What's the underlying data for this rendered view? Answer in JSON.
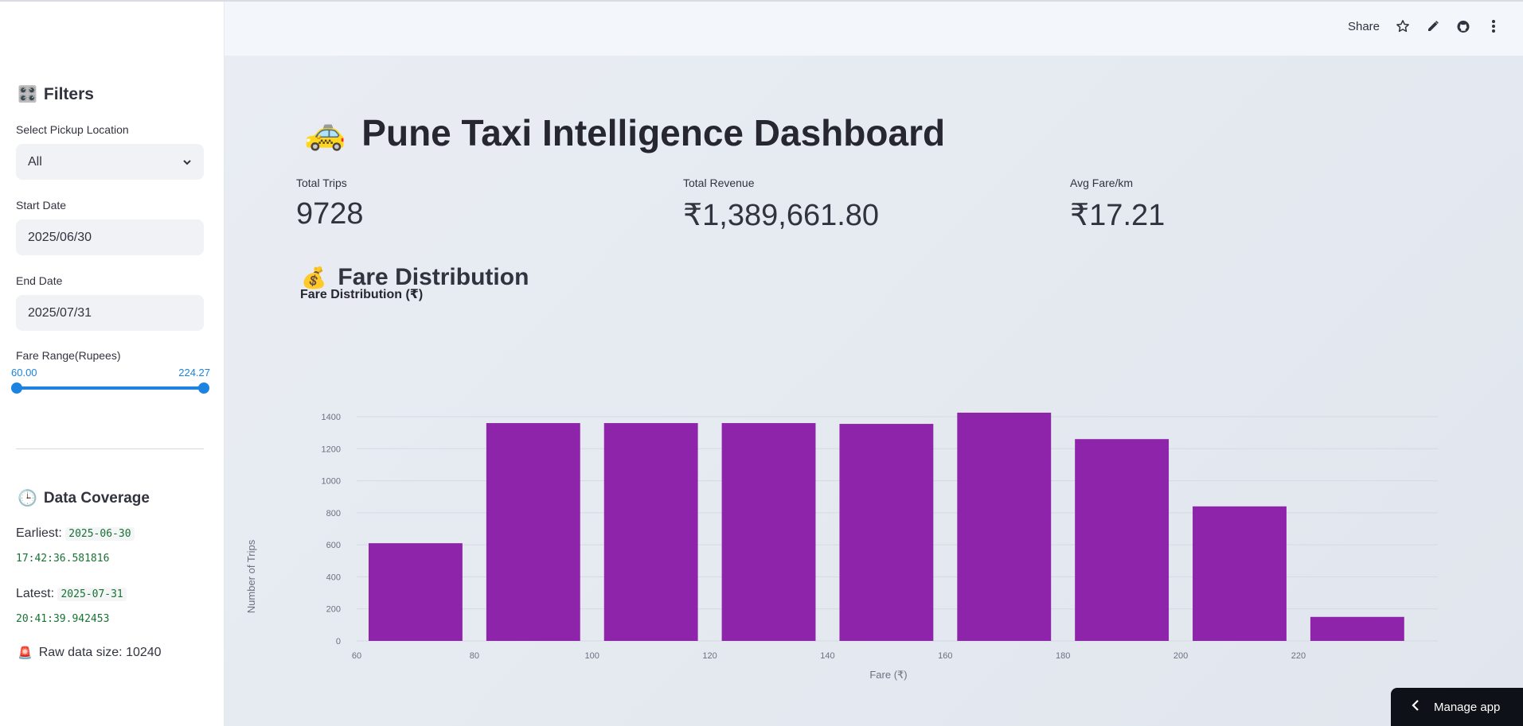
{
  "sidebar": {
    "filters_title": "Filters",
    "filters_emoji": "🎛️",
    "pickup": {
      "label": "Select Pickup Location",
      "value": "All"
    },
    "start_date": {
      "label": "Start Date",
      "value": "2025/06/30"
    },
    "end_date": {
      "label": "End Date",
      "value": "2025/07/31"
    },
    "fare_range": {
      "label": "Fare Range(Rupees)",
      "min": "60.00",
      "max": "224.27"
    },
    "coverage_title": "Data Coverage",
    "coverage_emoji": "🕒",
    "earliest_label": "Earliest:",
    "earliest_date": "2025-06-30",
    "earliest_time": "17:42:36.581816",
    "latest_label": "Latest:",
    "latest_date": "2025-07-31",
    "latest_time": "20:41:39.942453",
    "raw_emoji": "🚨",
    "raw_size": "Raw data size: 10240"
  },
  "header": {
    "share_label": "Share",
    "icons": [
      "star-icon",
      "pencil-icon",
      "github-icon",
      "more-vertical-icon"
    ]
  },
  "main": {
    "title": "Pune Taxi Intelligence Dashboard",
    "title_emoji": "🚕",
    "metrics": [
      {
        "label": "Total Trips",
        "value": "9728"
      },
      {
        "label": "Total Revenue",
        "value": "₹1,389,661.80"
      },
      {
        "label": "Avg Fare/km",
        "value": "₹17.21"
      }
    ],
    "section_title": "Fare Distribution",
    "section_emoji": "💰"
  },
  "chart_data": {
    "type": "bar",
    "title": "Fare Distribution (₹)",
    "xlabel": "Fare (₹)",
    "ylabel": "Number of Trips",
    "bins": [
      [
        60,
        80
      ],
      [
        80,
        100
      ],
      [
        100,
        120
      ],
      [
        120,
        140
      ],
      [
        140,
        160
      ],
      [
        160,
        180
      ],
      [
        180,
        200
      ],
      [
        200,
        220
      ],
      [
        220,
        240
      ]
    ],
    "values": [
      610,
      1360,
      1360,
      1360,
      1355,
      1425,
      1260,
      840,
      150
    ],
    "x_ticks": [
      60,
      80,
      100,
      120,
      140,
      160,
      180,
      200,
      220
    ],
    "y_ticks": [
      0,
      200,
      400,
      600,
      800,
      1000,
      1200,
      1400
    ],
    "xlim": [
      60,
      238
    ],
    "ylim": [
      0,
      1400
    ],
    "color": "#8e24aa",
    "grid": true
  },
  "manage_label": "Manage app",
  "colors": {
    "accent": "#1c83e1",
    "bar": "#8e24aa",
    "code": "#177233"
  }
}
